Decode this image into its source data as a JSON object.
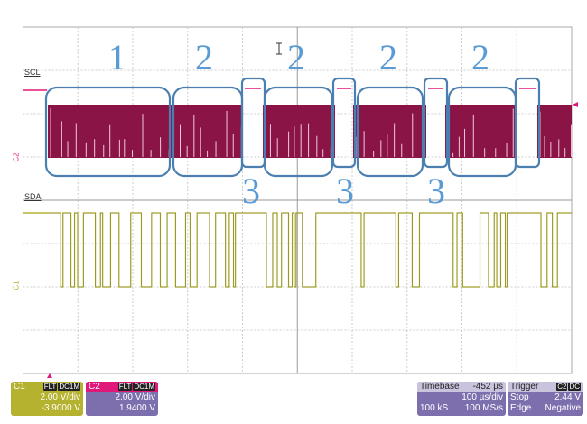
{
  "traces": {
    "scl_label": "SCL",
    "sda_label": "SDA",
    "c2_marker": "C2",
    "c1_marker": "C1"
  },
  "annotations": {
    "segments": [
      "1",
      "2",
      "2",
      "2",
      "2"
    ],
    "gaps": [
      "3",
      "3",
      "3"
    ],
    "color": "#4a7fb0",
    "label_color": "#5b9bd5"
  },
  "colors": {
    "c1": "#b4b22e",
    "c2": "#8a1446",
    "c2_header": "#e0187a",
    "panel": "#7d6fae"
  },
  "channels": {
    "c1": {
      "name": "C1",
      "coupling_tags": [
        "FLT",
        "DC1M"
      ],
      "vdiv": "2.00 V/div",
      "offset": "-3.9000 V"
    },
    "c2": {
      "name": "C2",
      "coupling_tags": [
        "FLT",
        "DC1M"
      ],
      "vdiv": "2.00 V/div",
      "offset": "1.9400 V"
    }
  },
  "timebase": {
    "label": "Timebase",
    "delay": "-452 µs",
    "tdiv": "100 µs/div",
    "samples": "100 kS",
    "rate": "100 MS/s"
  },
  "trigger": {
    "label": "Trigger",
    "tags": [
      "C2",
      "DC"
    ],
    "mode": "Stop",
    "level": "2.44 V",
    "type": "Edge",
    "slope": "Negative"
  }
}
